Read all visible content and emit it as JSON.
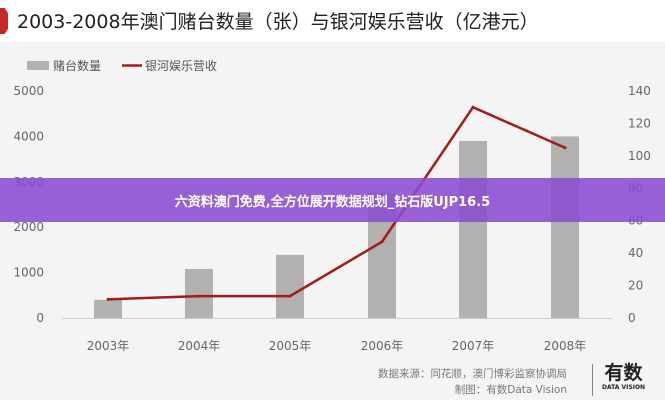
{
  "banner": "六资料澳门免费,全方位展开数据规划_钻石版UJP16.5",
  "source": {
    "line1": "数据来源：同花顺，澳门博彩监察协调局",
    "line2": "制图：有数Data Vision"
  },
  "logo": {
    "text": "有数",
    "sub": "DATA VISION"
  },
  "chart_data": {
    "type": "bar+line",
    "title": "2003-2008年澳门赌台数量（张）与银河娱乐营收（亿港元）",
    "categories": [
      "2003年",
      "2004年",
      "2005年",
      "2006年",
      "2007年",
      "2008年"
    ],
    "series": [
      {
        "name": "赌台数量",
        "type": "bar",
        "axis": "left",
        "color": "#b3b0b0",
        "values": [
          400,
          1080,
          1390,
          2760,
          3900,
          4000
        ]
      },
      {
        "name": "银河娱乐营收",
        "type": "line",
        "axis": "right",
        "color": "#a31b1b",
        "values": [
          11.5,
          13.5,
          13.5,
          47,
          130,
          105
        ]
      }
    ],
    "left_axis": {
      "range": [
        0,
        5000
      ],
      "ticks": [
        "0",
        "1000",
        "2000",
        "3000",
        "4000",
        "5000"
      ]
    },
    "right_axis": {
      "range": [
        0,
        140
      ],
      "ticks": [
        "0",
        "20",
        "40",
        "60",
        "80",
        "100",
        "120",
        "140"
      ]
    },
    "legend": "top-left",
    "grid": false
  }
}
